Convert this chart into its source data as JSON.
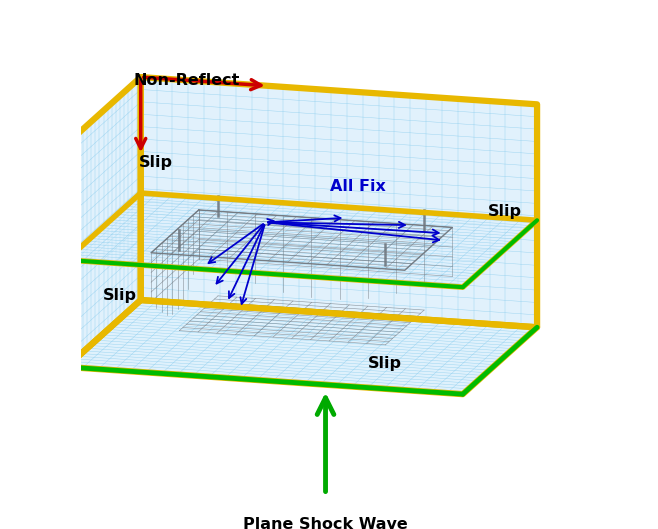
{
  "title": "Plane Shock Wave",
  "labels": {
    "slip_top": "Slip",
    "slip_left": "Slip",
    "slip_right": "Slip",
    "slip_front_left": "Slip",
    "all_fix": "All Fix",
    "non_reflect": "Non-Reflect"
  },
  "colors": {
    "background": "#ffffff",
    "grid_fill": "#ddf0fc",
    "grid_line": "#88ccee",
    "border_yellow": "#e8b800",
    "border_green": "#00bb00",
    "arrow_green": "#00aa00",
    "arrow_blue": "#0000cc",
    "arrow_red": "#cc0000",
    "car_line": "#707880"
  },
  "figsize": [
    6.58,
    5.29
  ],
  "dpi": 100
}
